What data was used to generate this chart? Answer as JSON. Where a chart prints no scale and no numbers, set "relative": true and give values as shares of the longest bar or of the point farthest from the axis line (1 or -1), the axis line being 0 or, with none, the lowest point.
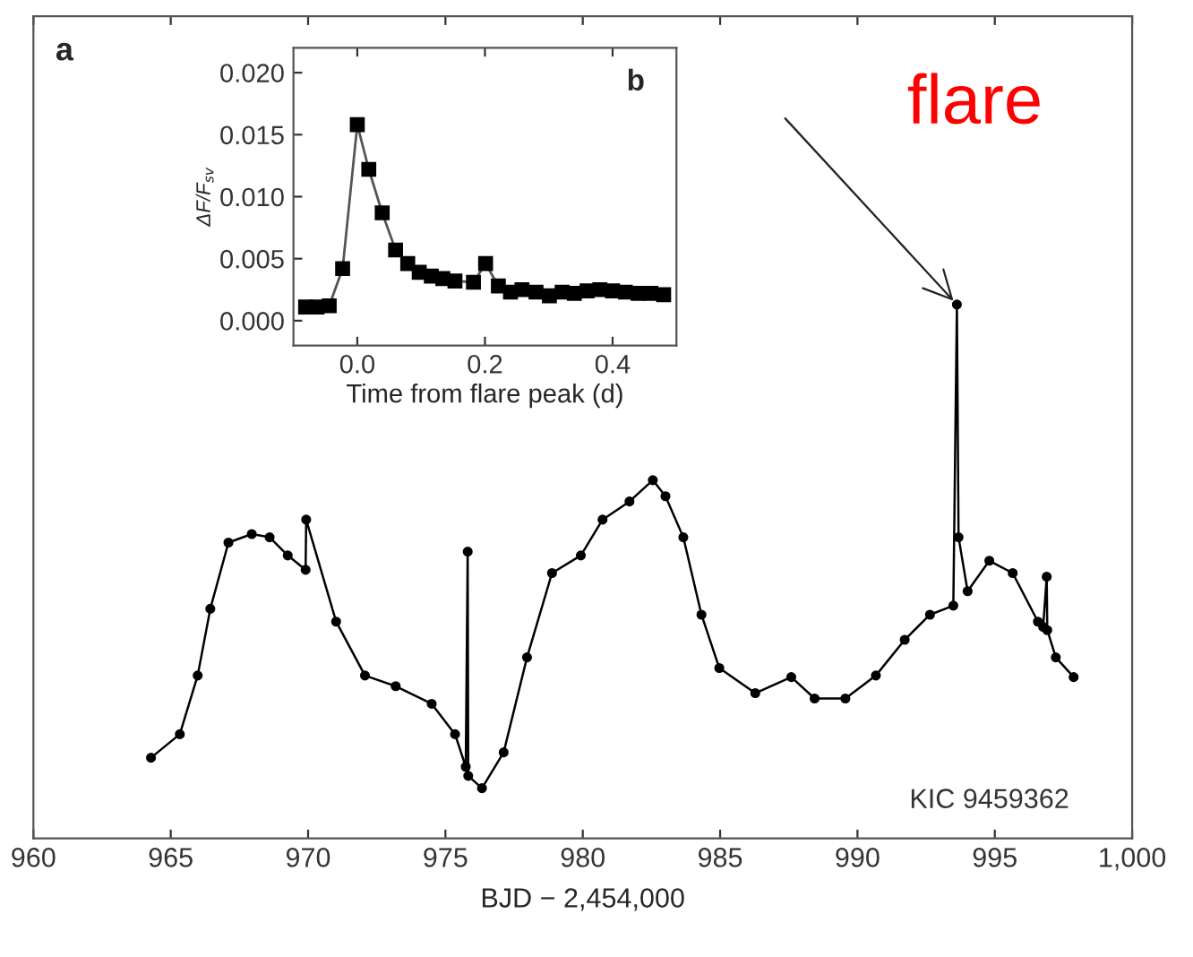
{
  "chart_data": [
    {
      "type": "line",
      "relative": true,
      "xlabel": "BJD − 2,454,000",
      "xlim": [
        960,
        1000
      ],
      "xticks": [
        960,
        965,
        970,
        975,
        980,
        985,
        990,
        995,
        {
          "value": 1000,
          "label": "1,000"
        }
      ],
      "tick_labels": "x",
      "marker": "circle",
      "grid": false,
      "annotations": [
        "a",
        "KIC 9459362",
        {
          "text": "flare",
          "x": 993.62,
          "y": 1.0
        }
      ],
      "x": [
        964.28,
        965.33,
        965.98,
        966.44,
        967.1,
        967.95,
        968.6,
        969.26,
        969.91,
        969.93,
        971.02,
        972.07,
        973.19,
        974.5,
        975.35,
        975.74,
        975.81,
        975.83,
        976.33,
        977.12,
        977.97,
        978.88,
        979.93,
        980.72,
        981.7,
        982.55,
        983.01,
        983.66,
        984.32,
        984.97,
        986.28,
        987.59,
        988.44,
        989.56,
        990.67,
        991.72,
        992.64,
        993.49,
        993.62,
        993.68,
        994.01,
        994.8,
        995.65,
        996.57,
        996.76,
        996.89,
        996.91,
        997.22,
        997.87
      ],
      "series": [
        {
          "color": "#000000",
          "values": [
            0.151,
            0.195,
            0.305,
            0.43,
            0.554,
            0.57,
            0.564,
            0.53,
            0.503,
            0.597,
            0.406,
            0.305,
            0.285,
            0.252,
            0.195,
            0.134,
            0.537,
            0.117,
            0.094,
            0.161,
            0.339,
            0.497,
            0.53,
            0.597,
            0.631,
            0.671,
            0.641,
            0.564,
            0.419,
            0.319,
            0.272,
            0.302,
            0.262,
            0.262,
            0.305,
            0.372,
            0.419,
            0.436,
            1.0,
            0.564,
            0.463,
            0.52,
            0.497,
            0.406,
            0.396,
            0.49,
            0.39,
            0.339,
            0.302
          ]
        }
      ]
    },
    {
      "type": "line",
      "xlabel": "Time from flare peak (d)",
      "ylabel": "ΔF/F$_{sv}$",
      "xlim": [
        -0.1,
        0.5
      ],
      "ylim": [
        -0.002,
        0.022
      ],
      "xticks": [
        {
          "value": 0.0,
          "label": "0.0"
        },
        {
          "value": 0.2,
          "label": "0.2"
        },
        {
          "value": 0.4,
          "label": "0.4"
        }
      ],
      "yticks": [
        {
          "value": 0.0,
          "label": "0.000"
        },
        {
          "value": 0.005,
          "label": "0.005"
        },
        {
          "value": 0.01,
          "label": "0.010"
        },
        {
          "value": 0.015,
          "label": "0.015"
        },
        {
          "value": 0.02,
          "label": "0.020"
        }
      ],
      "marker": "square",
      "grid": false,
      "annotations": [
        "b"
      ],
      "x": [
        -0.081,
        -0.063,
        -0.044,
        -0.023,
        0.0,
        0.018,
        0.039,
        0.06,
        0.079,
        0.097,
        0.116,
        0.134,
        0.153,
        0.182,
        0.201,
        0.221,
        0.24,
        0.258,
        0.28,
        0.301,
        0.321,
        0.34,
        0.36,
        0.38,
        0.4,
        0.42,
        0.44,
        0.46,
        0.48
      ],
      "series": [
        {
          "color": "#000000",
          "values": [
            0.0011,
            0.0011,
            0.0012,
            0.0042,
            0.0158,
            0.0122,
            0.0087,
            0.0057,
            0.0046,
            0.0039,
            0.0036,
            0.0034,
            0.0032,
            0.0031,
            0.0046,
            0.0028,
            0.0023,
            0.0025,
            0.0023,
            0.002,
            0.0023,
            0.0022,
            0.0024,
            0.0025,
            0.0024,
            0.0023,
            0.0022,
            0.0022,
            0.0021
          ]
        }
      ]
    }
  ]
}
